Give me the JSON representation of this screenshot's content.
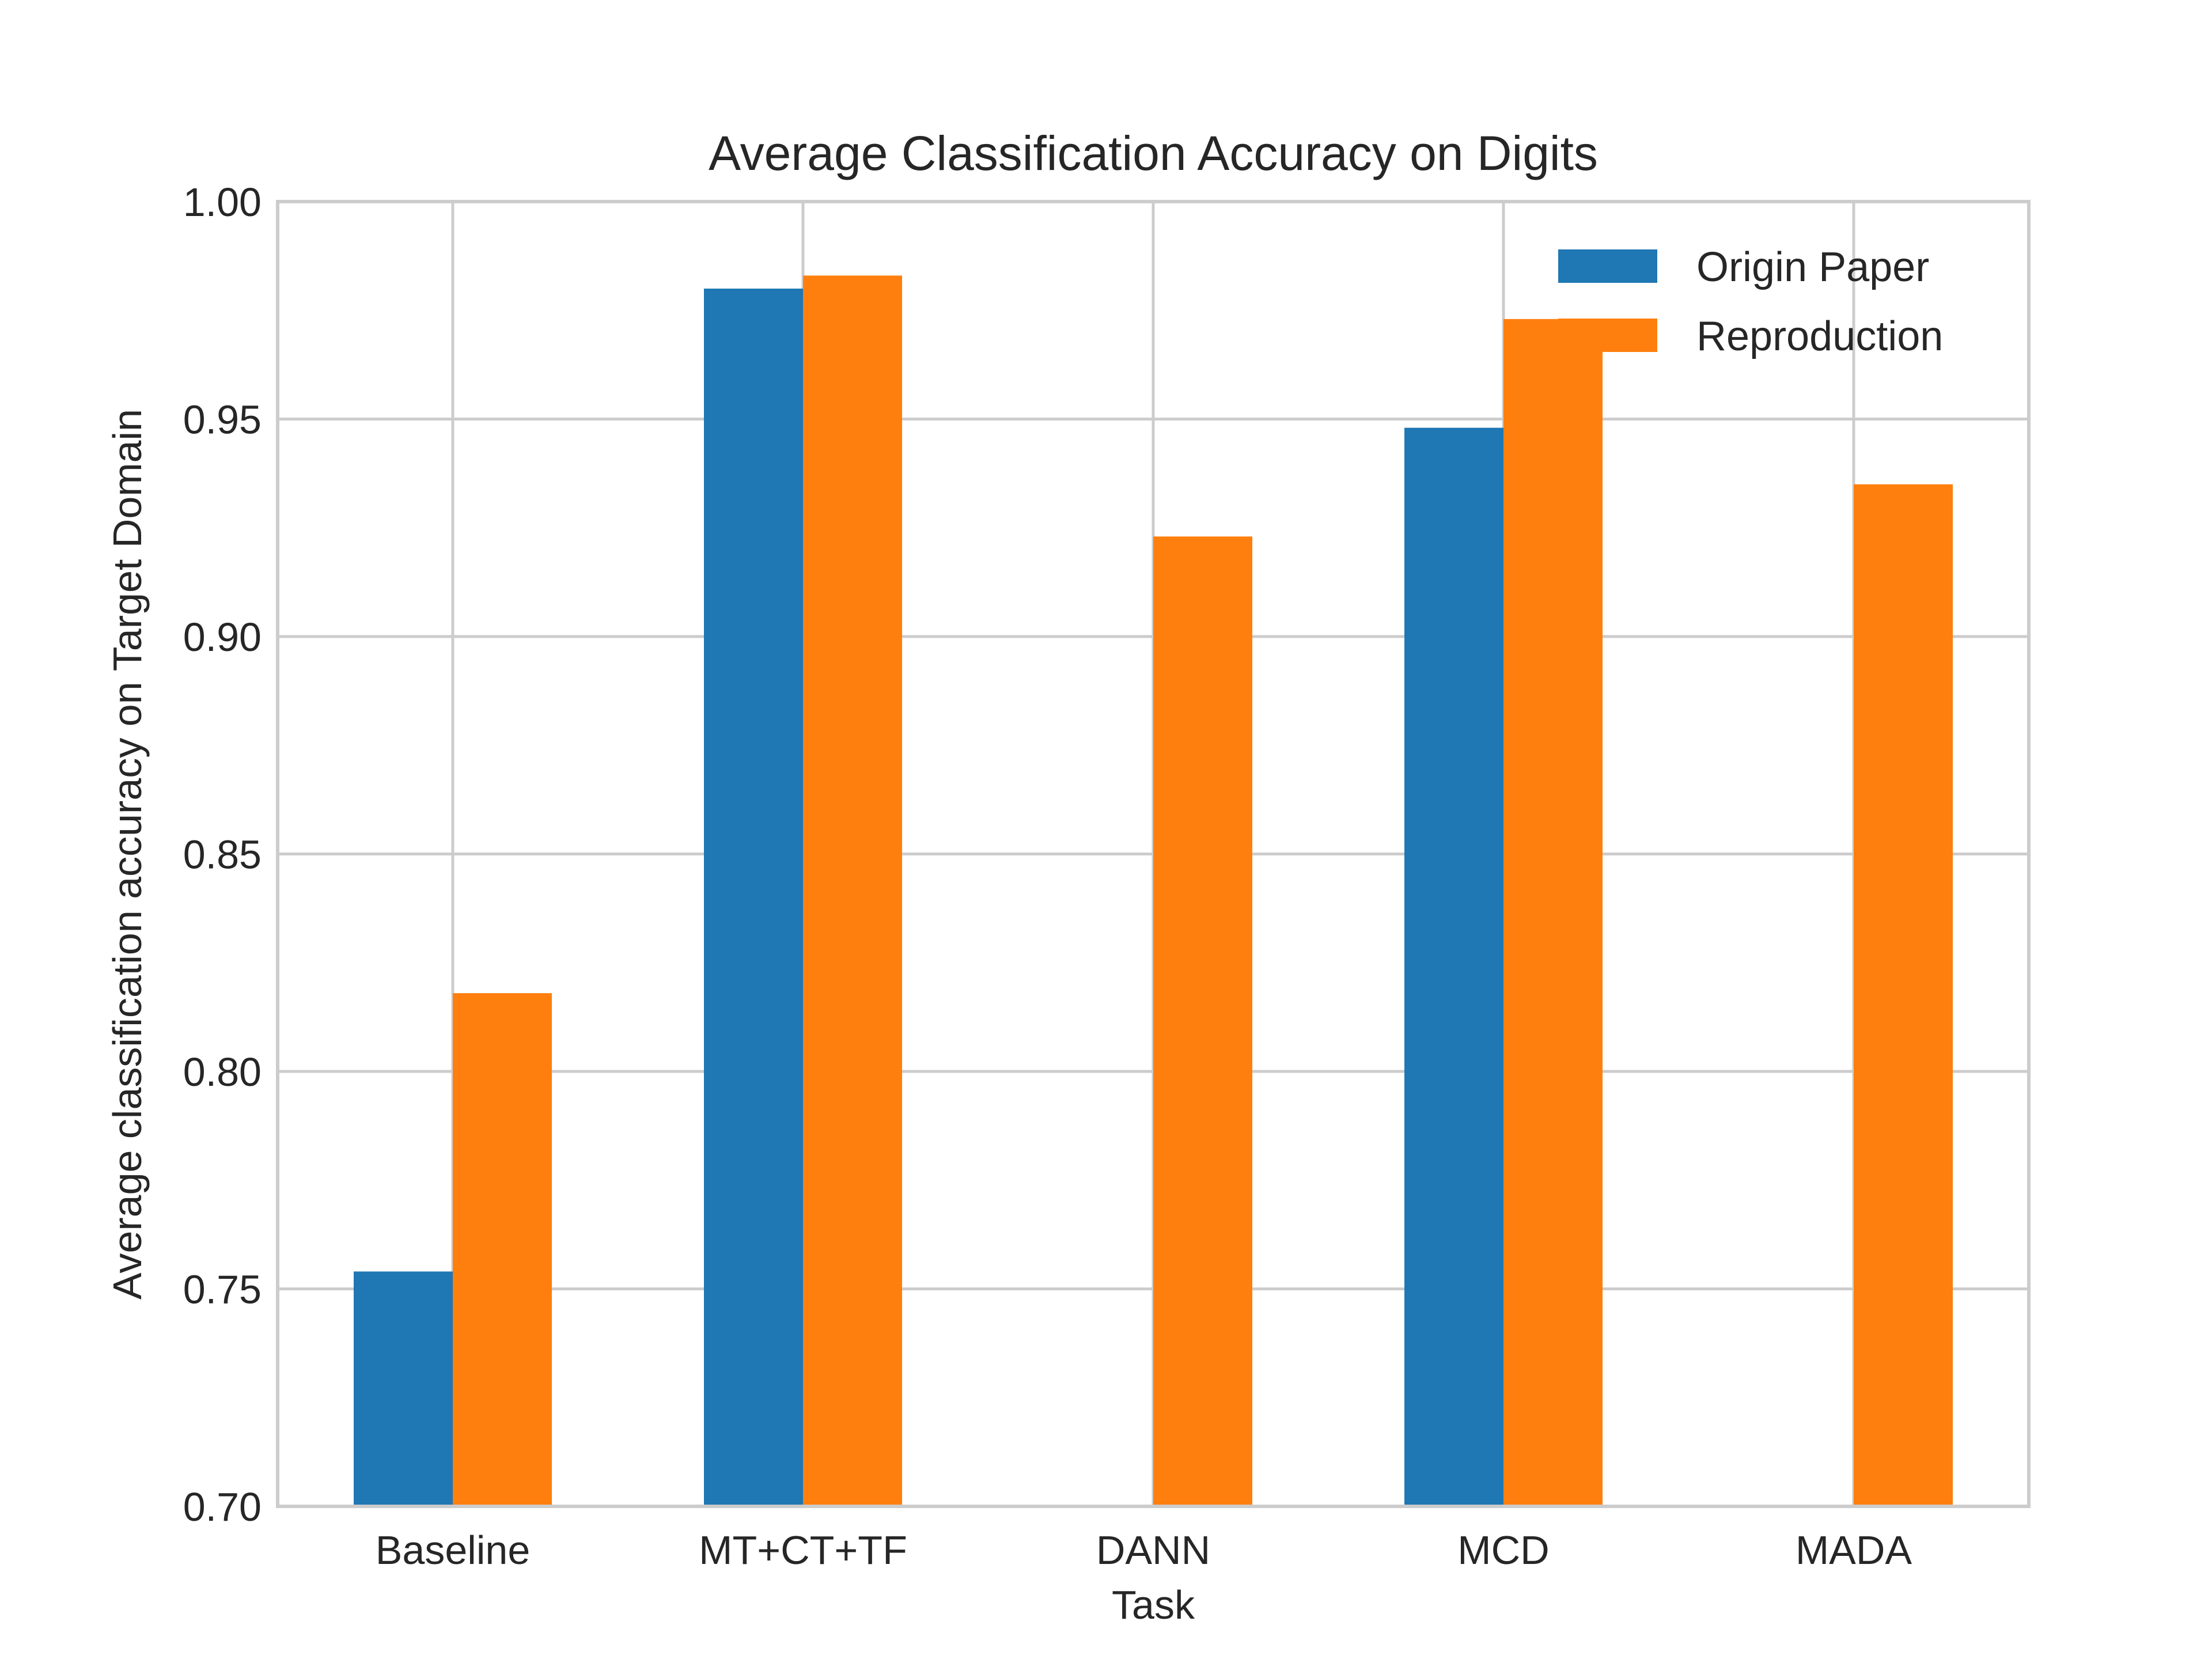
{
  "chart_data": {
    "type": "bar",
    "title": "Average Classification Accuracy on Digits",
    "xlabel": "Task",
    "ylabel": "Average classification accuracy on Target Domain",
    "categories": [
      "Baseline",
      "MT+CT+TF",
      "DANN",
      "MCD",
      "MADA"
    ],
    "series": [
      {
        "name": "Origin Paper",
        "color": "#1f77b4",
        "values": [
          0.754,
          0.98,
          null,
          0.948,
          null
        ]
      },
      {
        "name": "Reproduction",
        "color": "#ff7f0e",
        "values": [
          0.818,
          0.983,
          0.923,
          0.973,
          0.935
        ]
      }
    ],
    "ylim": [
      0.7,
      1.0
    ],
    "yticks": [
      0.7,
      0.75,
      0.8,
      0.85,
      0.9,
      0.95,
      1.0
    ],
    "ytick_labels": [
      "0.70",
      "0.75",
      "0.80",
      "0.85",
      "0.90",
      "0.95",
      "1.00"
    ],
    "grid": true,
    "legend_position": "top-right",
    "style_colors": {
      "grid": "#cccccc",
      "frame": "#cccccc",
      "text": "#262626",
      "background": "#ffffff"
    }
  }
}
